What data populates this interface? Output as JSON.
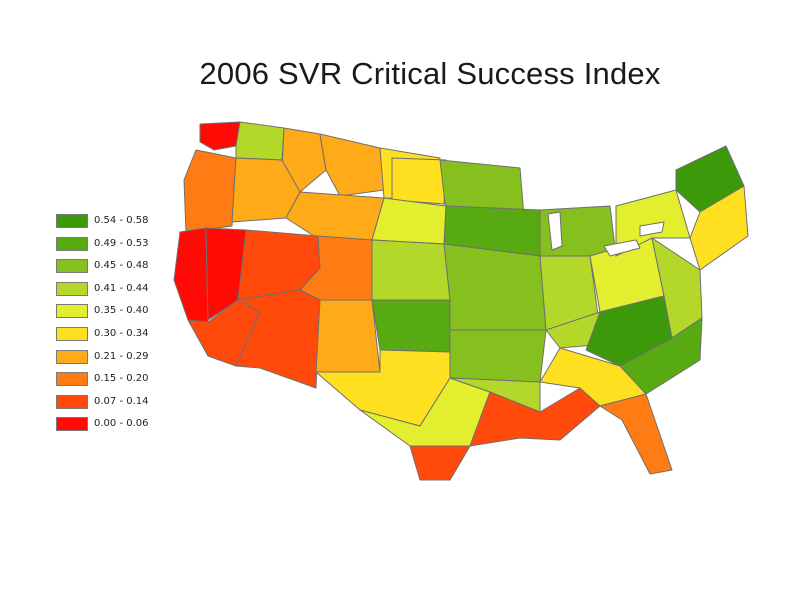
{
  "title": "2006 SVR Critical Success Index",
  "legend": [
    {
      "label": "0.54 - 0.58",
      "color": "#3c9a0a"
    },
    {
      "label": "0.49 - 0.53",
      "color": "#58aa12"
    },
    {
      "label": "0.45 - 0.48",
      "color": "#86c01e"
    },
    {
      "label": "0.41 - 0.44",
      "color": "#b4d82a"
    },
    {
      "label": "0.35 - 0.40",
      "color": "#e2ee2e"
    },
    {
      "label": "0.30 - 0.34",
      "color": "#ffe020"
    },
    {
      "label": "0.21 - 0.29",
      "color": "#ffaa18"
    },
    {
      "label": "0.15 - 0.20",
      "color": "#ff7c14"
    },
    {
      "label": "0.07 - 0.14",
      "color": "#ff4a0c"
    },
    {
      "label": "0.00 - 0.06",
      "color": "#ff0a04"
    }
  ],
  "regions": [
    {
      "name": "washington-coast",
      "class": 9
    },
    {
      "name": "washington-east",
      "class": 3
    },
    {
      "name": "idaho-north",
      "class": 6
    },
    {
      "name": "montana-west",
      "class": 6
    },
    {
      "name": "montana-east",
      "class": 5
    },
    {
      "name": "north-dakota",
      "class": 5
    },
    {
      "name": "minnesota",
      "class": 2
    },
    {
      "name": "oregon-coast",
      "class": 7
    },
    {
      "name": "oregon-east",
      "class": 6
    },
    {
      "name": "wyoming",
      "class": 6
    },
    {
      "name": "south-dakota",
      "class": 4
    },
    {
      "name": "wisconsin",
      "class": 1
    },
    {
      "name": "northern-california",
      "class": 9
    },
    {
      "name": "nevada-west",
      "class": 9
    },
    {
      "name": "nevada-utah",
      "class": 8
    },
    {
      "name": "colorado",
      "class": 7
    },
    {
      "name": "nebraska-kansas",
      "class": 3
    },
    {
      "name": "iowa-missouri",
      "class": 2
    },
    {
      "name": "illinois-indiana",
      "class": 3
    },
    {
      "name": "michigan",
      "class": 2
    },
    {
      "name": "ohio",
      "class": 4
    },
    {
      "name": "new-york",
      "class": 4
    },
    {
      "name": "new-england-north",
      "class": 0
    },
    {
      "name": "new-england-south",
      "class": 5
    },
    {
      "name": "southern-california",
      "class": 8
    },
    {
      "name": "arizona",
      "class": 8
    },
    {
      "name": "new-mexico",
      "class": 6
    },
    {
      "name": "oklahoma",
      "class": 1
    },
    {
      "name": "arkansas",
      "class": 2
    },
    {
      "name": "kentucky-tennessee",
      "class": 3
    },
    {
      "name": "appalachia",
      "class": 0
    },
    {
      "name": "virginia",
      "class": 3
    },
    {
      "name": "carolinas",
      "class": 1
    },
    {
      "name": "texas-west",
      "class": 5
    },
    {
      "name": "texas-central",
      "class": 4
    },
    {
      "name": "louisiana",
      "class": 3
    },
    {
      "name": "gulf-coast",
      "class": 8
    },
    {
      "name": "georgia",
      "class": 5
    },
    {
      "name": "florida",
      "class": 7
    },
    {
      "name": "south-texas",
      "class": 8
    }
  ]
}
